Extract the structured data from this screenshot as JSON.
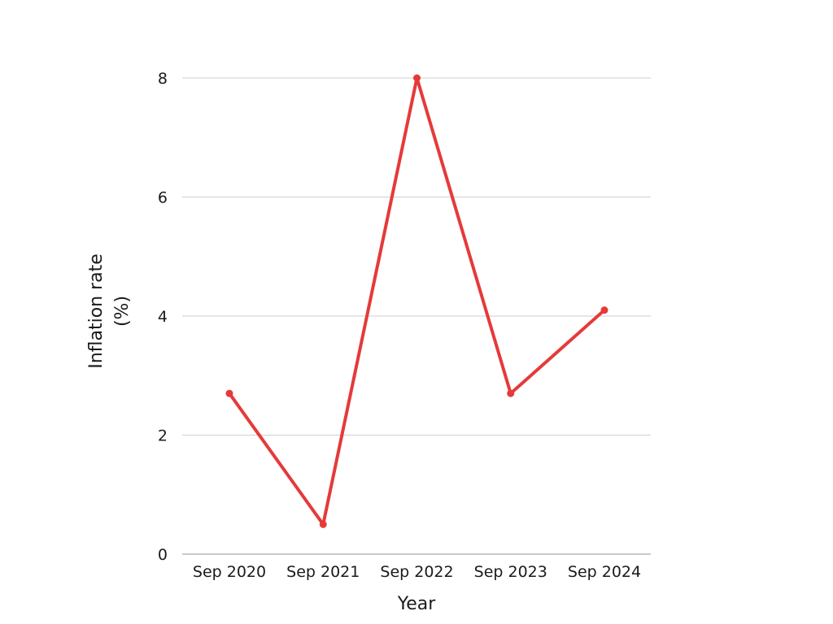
{
  "chart_data": {
    "type": "line",
    "title": "",
    "xlabel": "Year",
    "ylabel_lines": [
      "Inflation rate",
      "(%)"
    ],
    "categories": [
      "Sep 2020",
      "Sep 2021",
      "Sep 2022",
      "Sep 2023",
      "Sep 2024"
    ],
    "series": [
      {
        "values": [
          2.7,
          0.5,
          8.0,
          2.7,
          4.1
        ],
        "color": "#e53a3a"
      }
    ],
    "ylim": [
      0,
      8
    ],
    "yticks": [
      "0",
      "2",
      "4",
      "6",
      "8"
    ],
    "grid": true,
    "legend": "none"
  }
}
